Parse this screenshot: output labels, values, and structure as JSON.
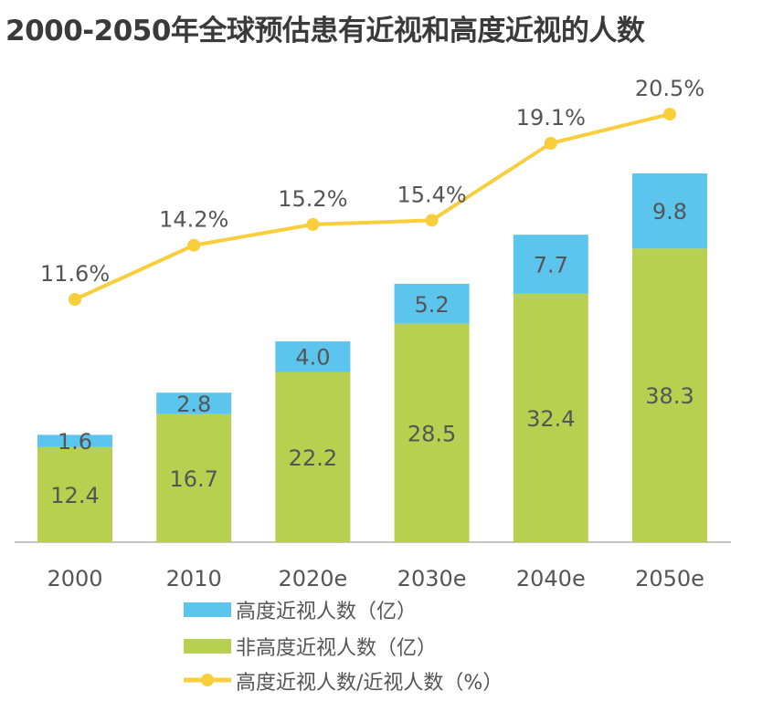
{
  "chart_data": {
    "type": "bar",
    "title": "2000-2050年全球预估患有近视和高度近视的人数",
    "categories": [
      "2000",
      "2010",
      "2020e",
      "2030e",
      "2040e",
      "2050e"
    ],
    "series": [
      {
        "name": "非高度近视人数（亿）",
        "type": "bar",
        "stack": "a",
        "color": "#B8D050",
        "values": [
          12.4,
          16.7,
          22.2,
          28.5,
          32.4,
          38.3
        ]
      },
      {
        "name": "高度近视人数（亿）",
        "type": "bar",
        "stack": "a",
        "color": "#5BC5EE",
        "values": [
          1.6,
          2.8,
          4.0,
          5.2,
          7.7,
          9.8
        ]
      },
      {
        "name": "高度近视人数/近视人数（%）",
        "type": "line",
        "color": "#F8CE3C",
        "values": [
          11.6,
          14.2,
          15.2,
          15.4,
          19.1,
          20.5
        ],
        "labels": [
          "11.6%",
          "14.2%",
          "15.2%",
          "15.4%",
          "19.1%",
          "20.5%"
        ]
      }
    ],
    "legend": {
      "placement": "bottom",
      "order": [
        "高度近视人数（亿）",
        "非高度近视人数（亿）",
        "高度近视人数/近视人数（%）"
      ]
    },
    "xlabel": "",
    "ylabel": "",
    "grid": false
  }
}
